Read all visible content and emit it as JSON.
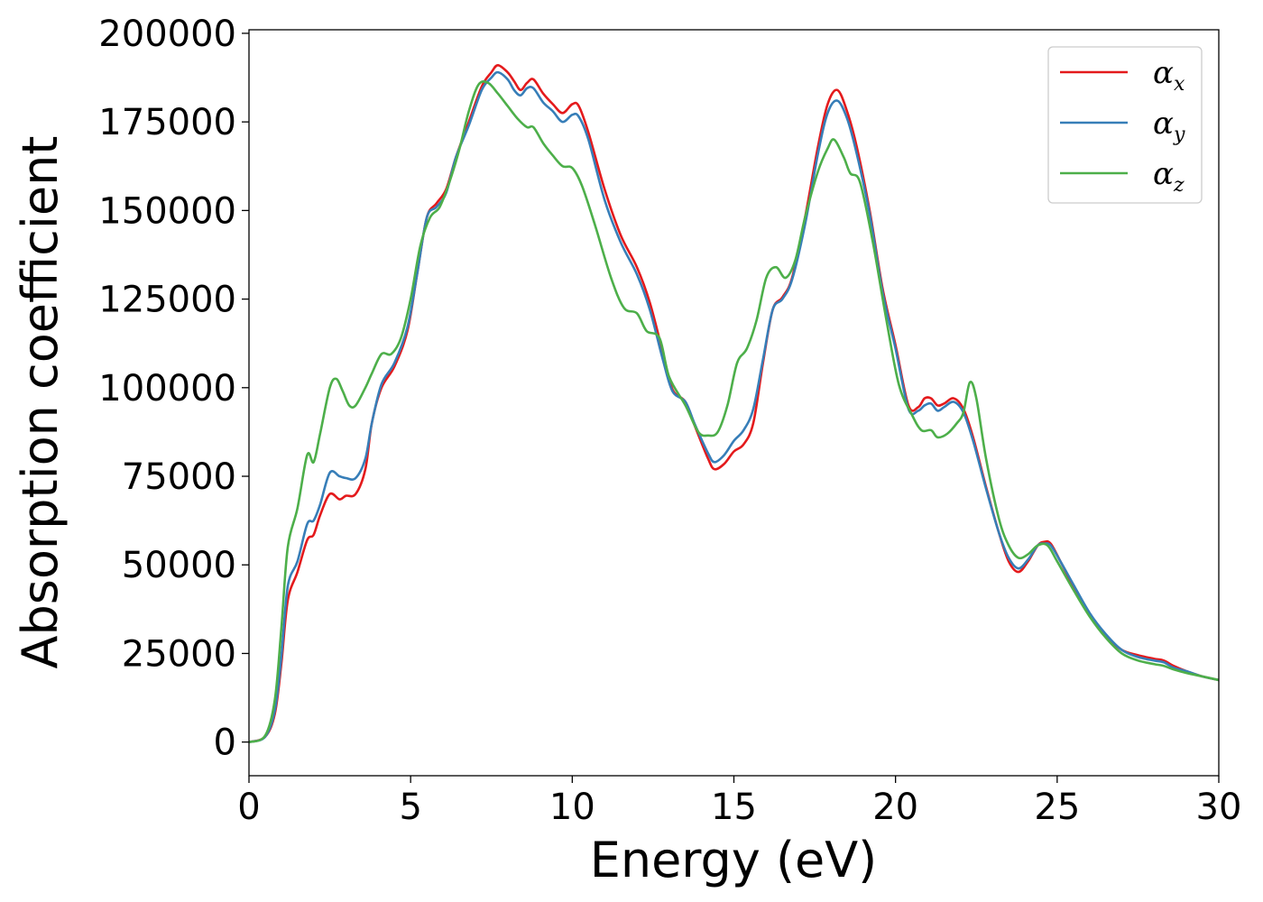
{
  "chart_data": {
    "type": "line",
    "title": "",
    "xlabel": "Energy (eV)",
    "ylabel": "Absorption coefficient",
    "xlim": [
      0,
      30
    ],
    "ylim": [
      -9500,
      201000
    ],
    "xticks": [
      0,
      5,
      10,
      15,
      20,
      25,
      30
    ],
    "xtick_labels": [
      "0",
      "5",
      "10",
      "15",
      "20",
      "25",
      "30"
    ],
    "yticks": [
      0,
      25000,
      50000,
      75000,
      100000,
      125000,
      150000,
      175000,
      200000
    ],
    "ytick_labels": [
      "0",
      "25000",
      "50000",
      "75000",
      "100000",
      "125000",
      "150000",
      "175000",
      "200000"
    ],
    "grid": false,
    "legend_position": "top-right",
    "series": [
      {
        "name": "αx",
        "symbol": "α",
        "subscript": "x",
        "color": "#e41a1c",
        "points": [
          [
            0,
            0
          ],
          [
            0.5,
            1500
          ],
          [
            0.8,
            8000
          ],
          [
            1.0,
            22000
          ],
          [
            1.2,
            40000
          ],
          [
            1.5,
            48000
          ],
          [
            1.8,
            57000
          ],
          [
            2.0,
            58500
          ],
          [
            2.2,
            64000
          ],
          [
            2.5,
            70000
          ],
          [
            2.8,
            68500
          ],
          [
            3.0,
            69500
          ],
          [
            3.3,
            70000
          ],
          [
            3.6,
            77000
          ],
          [
            3.8,
            90000
          ],
          [
            4.1,
            100000
          ],
          [
            4.5,
            106000
          ],
          [
            4.9,
            116000
          ],
          [
            5.2,
            132000
          ],
          [
            5.5,
            148000
          ],
          [
            5.8,
            152000
          ],
          [
            6.1,
            156000
          ],
          [
            6.4,
            165000
          ],
          [
            6.8,
            175000
          ],
          [
            7.2,
            185000
          ],
          [
            7.5,
            189000
          ],
          [
            7.7,
            191000
          ],
          [
            8.0,
            189000
          ],
          [
            8.2,
            186500
          ],
          [
            8.4,
            184000
          ],
          [
            8.6,
            186000
          ],
          [
            8.8,
            187000
          ],
          [
            9.1,
            183000
          ],
          [
            9.4,
            180000
          ],
          [
            9.7,
            177500
          ],
          [
            10.0,
            180000
          ],
          [
            10.2,
            179500
          ],
          [
            10.5,
            172000
          ],
          [
            11.0,
            156000
          ],
          [
            11.5,
            143000
          ],
          [
            12.0,
            134000
          ],
          [
            12.4,
            124000
          ],
          [
            12.8,
            110000
          ],
          [
            13.1,
            99500
          ],
          [
            13.5,
            96000
          ],
          [
            13.8,
            89000
          ],
          [
            14.2,
            80000
          ],
          [
            14.4,
            77000
          ],
          [
            14.7,
            78500
          ],
          [
            15.0,
            82000
          ],
          [
            15.3,
            84000
          ],
          [
            15.6,
            90000
          ],
          [
            15.9,
            107000
          ],
          [
            16.2,
            122000
          ],
          [
            16.5,
            125500
          ],
          [
            16.8,
            131000
          ],
          [
            17.2,
            148000
          ],
          [
            17.6,
            168000
          ],
          [
            17.9,
            180000
          ],
          [
            18.2,
            184000
          ],
          [
            18.5,
            178000
          ],
          [
            18.8,
            168000
          ],
          [
            19.2,
            150000
          ],
          [
            19.6,
            128000
          ],
          [
            20.0,
            112000
          ],
          [
            20.4,
            95000
          ],
          [
            20.7,
            94500
          ],
          [
            20.9,
            97000
          ],
          [
            21.1,
            97000
          ],
          [
            21.3,
            95000
          ],
          [
            21.5,
            95500
          ],
          [
            21.8,
            97000
          ],
          [
            22.1,
            94000
          ],
          [
            22.4,
            86000
          ],
          [
            22.8,
            72000
          ],
          [
            23.2,
            59000
          ],
          [
            23.5,
            51000
          ],
          [
            23.8,
            48000
          ],
          [
            24.1,
            51000
          ],
          [
            24.4,
            55500
          ],
          [
            24.6,
            56500
          ],
          [
            24.8,
            56000
          ],
          [
            25.1,
            51000
          ],
          [
            25.5,
            44000
          ],
          [
            26.0,
            36000
          ],
          [
            26.5,
            30000
          ],
          [
            27.0,
            26000
          ],
          [
            27.5,
            24500
          ],
          [
            28.0,
            23500
          ],
          [
            28.3,
            23000
          ],
          [
            28.6,
            21500
          ],
          [
            29.0,
            20000
          ],
          [
            29.5,
            18500
          ],
          [
            30.0,
            17500
          ]
        ]
      },
      {
        "name": "αy",
        "symbol": "α",
        "subscript": "y",
        "color": "#377eb8",
        "points": [
          [
            0,
            0
          ],
          [
            0.5,
            1500
          ],
          [
            0.8,
            9000
          ],
          [
            1.0,
            24000
          ],
          [
            1.2,
            44000
          ],
          [
            1.5,
            51000
          ],
          [
            1.8,
            61500
          ],
          [
            2.0,
            62500
          ],
          [
            2.2,
            67000
          ],
          [
            2.5,
            76000
          ],
          [
            2.8,
            75000
          ],
          [
            3.0,
            74500
          ],
          [
            3.3,
            74500
          ],
          [
            3.6,
            80000
          ],
          [
            3.8,
            90000
          ],
          [
            4.1,
            101000
          ],
          [
            4.5,
            107000
          ],
          [
            4.9,
            117000
          ],
          [
            5.2,
            132000
          ],
          [
            5.5,
            148000
          ],
          [
            5.8,
            151000
          ],
          [
            6.1,
            155000
          ],
          [
            6.4,
            165000
          ],
          [
            6.8,
            174000
          ],
          [
            7.2,
            184000
          ],
          [
            7.5,
            187500
          ],
          [
            7.7,
            189000
          ],
          [
            8.0,
            187000
          ],
          [
            8.2,
            184000
          ],
          [
            8.4,
            182500
          ],
          [
            8.6,
            184500
          ],
          [
            8.8,
            184500
          ],
          [
            9.1,
            180500
          ],
          [
            9.4,
            178000
          ],
          [
            9.7,
            175000
          ],
          [
            10.0,
            177000
          ],
          [
            10.2,
            176500
          ],
          [
            10.5,
            170000
          ],
          [
            11.0,
            153000
          ],
          [
            11.5,
            141000
          ],
          [
            12.0,
            132000
          ],
          [
            12.4,
            122000
          ],
          [
            12.8,
            108000
          ],
          [
            13.1,
            99000
          ],
          [
            13.5,
            96000
          ],
          [
            13.8,
            89500
          ],
          [
            14.2,
            81500
          ],
          [
            14.4,
            79000
          ],
          [
            14.7,
            81000
          ],
          [
            15.0,
            85000
          ],
          [
            15.3,
            88000
          ],
          [
            15.6,
            94000
          ],
          [
            15.9,
            108000
          ],
          [
            16.2,
            122000
          ],
          [
            16.5,
            125000
          ],
          [
            16.8,
            130500
          ],
          [
            17.2,
            146000
          ],
          [
            17.6,
            166000
          ],
          [
            17.9,
            177500
          ],
          [
            18.2,
            181000
          ],
          [
            18.5,
            176000
          ],
          [
            18.8,
            166000
          ],
          [
            19.2,
            149000
          ],
          [
            19.6,
            127000
          ],
          [
            20.0,
            111000
          ],
          [
            20.4,
            94000
          ],
          [
            20.7,
            93500
          ],
          [
            20.9,
            95000
          ],
          [
            21.1,
            95500
          ],
          [
            21.3,
            93500
          ],
          [
            21.5,
            94500
          ],
          [
            21.8,
            96000
          ],
          [
            22.1,
            93000
          ],
          [
            22.4,
            85000
          ],
          [
            22.8,
            71500
          ],
          [
            23.2,
            59000
          ],
          [
            23.5,
            52000
          ],
          [
            23.8,
            49000
          ],
          [
            24.1,
            51500
          ],
          [
            24.4,
            55500
          ],
          [
            24.6,
            56000
          ],
          [
            24.8,
            55500
          ],
          [
            25.1,
            51000
          ],
          [
            25.5,
            44500
          ],
          [
            26.0,
            36500
          ],
          [
            26.5,
            30500
          ],
          [
            27.0,
            26000
          ],
          [
            27.5,
            24000
          ],
          [
            28.0,
            23000
          ],
          [
            28.3,
            22500
          ],
          [
            28.6,
            21000
          ],
          [
            29.0,
            20000
          ],
          [
            29.5,
            18500
          ],
          [
            30.0,
            17500
          ]
        ]
      },
      {
        "name": "αz",
        "symbol": "α",
        "subscript": "z",
        "color": "#4daf4a",
        "points": [
          [
            0,
            0
          ],
          [
            0.5,
            1800
          ],
          [
            0.8,
            12000
          ],
          [
            1.0,
            32000
          ],
          [
            1.2,
            55000
          ],
          [
            1.5,
            66000
          ],
          [
            1.8,
            81000
          ],
          [
            2.0,
            79000
          ],
          [
            2.2,
            87000
          ],
          [
            2.5,
            100000
          ],
          [
            2.7,
            102500
          ],
          [
            2.9,
            99000
          ],
          [
            3.1,
            95000
          ],
          [
            3.3,
            95000
          ],
          [
            3.6,
            100000
          ],
          [
            3.8,
            104000
          ],
          [
            4.1,
            109500
          ],
          [
            4.4,
            109500
          ],
          [
            4.7,
            114000
          ],
          [
            5.0,
            125000
          ],
          [
            5.3,
            140000
          ],
          [
            5.6,
            148000
          ],
          [
            5.9,
            151000
          ],
          [
            6.2,
            158000
          ],
          [
            6.5,
            167000
          ],
          [
            6.8,
            178000
          ],
          [
            7.1,
            185500
          ],
          [
            7.4,
            186000
          ],
          [
            7.7,
            183000
          ],
          [
            8.0,
            179500
          ],
          [
            8.3,
            176000
          ],
          [
            8.6,
            173500
          ],
          [
            8.8,
            173500
          ],
          [
            9.1,
            169000
          ],
          [
            9.4,
            165500
          ],
          [
            9.7,
            162500
          ],
          [
            10.0,
            162000
          ],
          [
            10.3,
            157000
          ],
          [
            10.7,
            146000
          ],
          [
            11.2,
            131000
          ],
          [
            11.6,
            122500
          ],
          [
            12.0,
            121000
          ],
          [
            12.3,
            116000
          ],
          [
            12.7,
            114000
          ],
          [
            13.0,
            103000
          ],
          [
            13.5,
            95000
          ],
          [
            13.9,
            87500
          ],
          [
            14.2,
            86500
          ],
          [
            14.5,
            87500
          ],
          [
            14.8,
            95000
          ],
          [
            15.1,
            107000
          ],
          [
            15.4,
            111000
          ],
          [
            15.7,
            119000
          ],
          [
            16.0,
            131000
          ],
          [
            16.3,
            134000
          ],
          [
            16.6,
            131000
          ],
          [
            16.9,
            136000
          ],
          [
            17.2,
            148000
          ],
          [
            17.6,
            161000
          ],
          [
            17.9,
            167500
          ],
          [
            18.1,
            170000
          ],
          [
            18.4,
            165000
          ],
          [
            18.6,
            160500
          ],
          [
            18.9,
            158000
          ],
          [
            19.3,
            141000
          ],
          [
            19.7,
            120000
          ],
          [
            20.1,
            101000
          ],
          [
            20.5,
            92500
          ],
          [
            20.8,
            88000
          ],
          [
            21.1,
            88000
          ],
          [
            21.3,
            86000
          ],
          [
            21.6,
            87000
          ],
          [
            21.9,
            90000
          ],
          [
            22.1,
            93000
          ],
          [
            22.3,
            101500
          ],
          [
            22.5,
            97000
          ],
          [
            22.8,
            80000
          ],
          [
            23.2,
            63000
          ],
          [
            23.5,
            55500
          ],
          [
            23.8,
            52000
          ],
          [
            24.1,
            53000
          ],
          [
            24.4,
            55500
          ],
          [
            24.7,
            55500
          ],
          [
            25.0,
            51000
          ],
          [
            25.5,
            43000
          ],
          [
            26.0,
            35500
          ],
          [
            26.5,
            29500
          ],
          [
            27.0,
            25000
          ],
          [
            27.5,
            23000
          ],
          [
            28.0,
            22000
          ],
          [
            28.3,
            21500
          ],
          [
            28.6,
            20500
          ],
          [
            29.0,
            19500
          ],
          [
            29.5,
            18500
          ],
          [
            30.0,
            17500
          ]
        ]
      }
    ]
  }
}
